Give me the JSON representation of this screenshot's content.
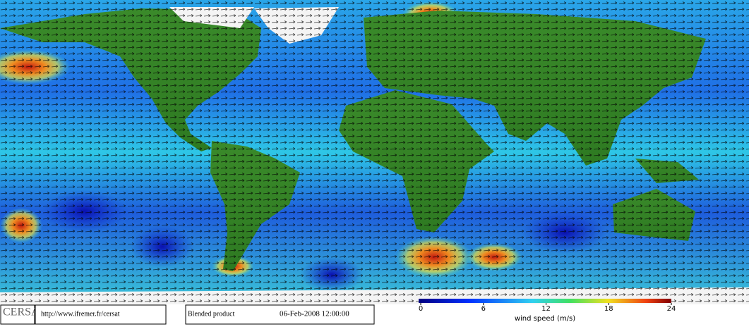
{
  "logo": "CERSAT",
  "url": "http://www.ifremer.fr/cersat",
  "product": "Blended product",
  "date": "06-Feb-2008 12:00:00",
  "colorbar": {
    "label": "wind speed (m/s)",
    "lim": [
      0,
      24
    ],
    "ticks": [
      0,
      6,
      12,
      18,
      24
    ]
  }
}
